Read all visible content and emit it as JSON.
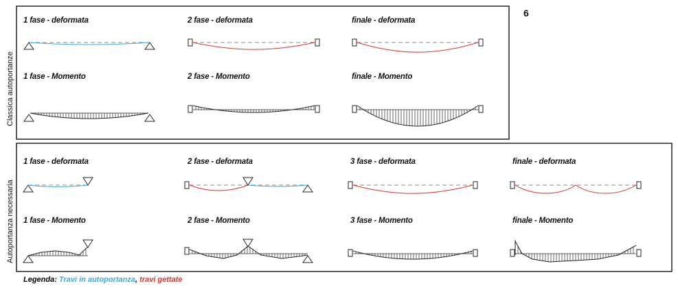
{
  "figure_number": "6",
  "section_1": {
    "side_label": "Classica autoportanze",
    "labels": {
      "a": "1 fase - deformata",
      "b": "2 fase - deformata",
      "c": "finale - deformata",
      "d": "1 fase - Momento",
      "e": "2 fase - Momento",
      "f": "finale - Momento"
    }
  },
  "section_2": {
    "side_label": "Autoportanza necessaria",
    "labels": {
      "a": "1 fase - deformata",
      "b": "2 fase - deformata",
      "c": "3 fase - deformata",
      "d": "finale - deformata",
      "e": "1 fase - Momento",
      "f": "2 fase - Momento",
      "g": "3 fase - Momento",
      "h": "finale - Momento"
    }
  },
  "legend": {
    "title": "Legenda:",
    "item_blue": "Travi in autoportanza",
    "separator": ",",
    "item_red": "travi gettate"
  },
  "colors": {
    "blue": "#3fa9d6",
    "red": "#d8352a",
    "ink": "#222222",
    "dash": "#888888"
  }
}
